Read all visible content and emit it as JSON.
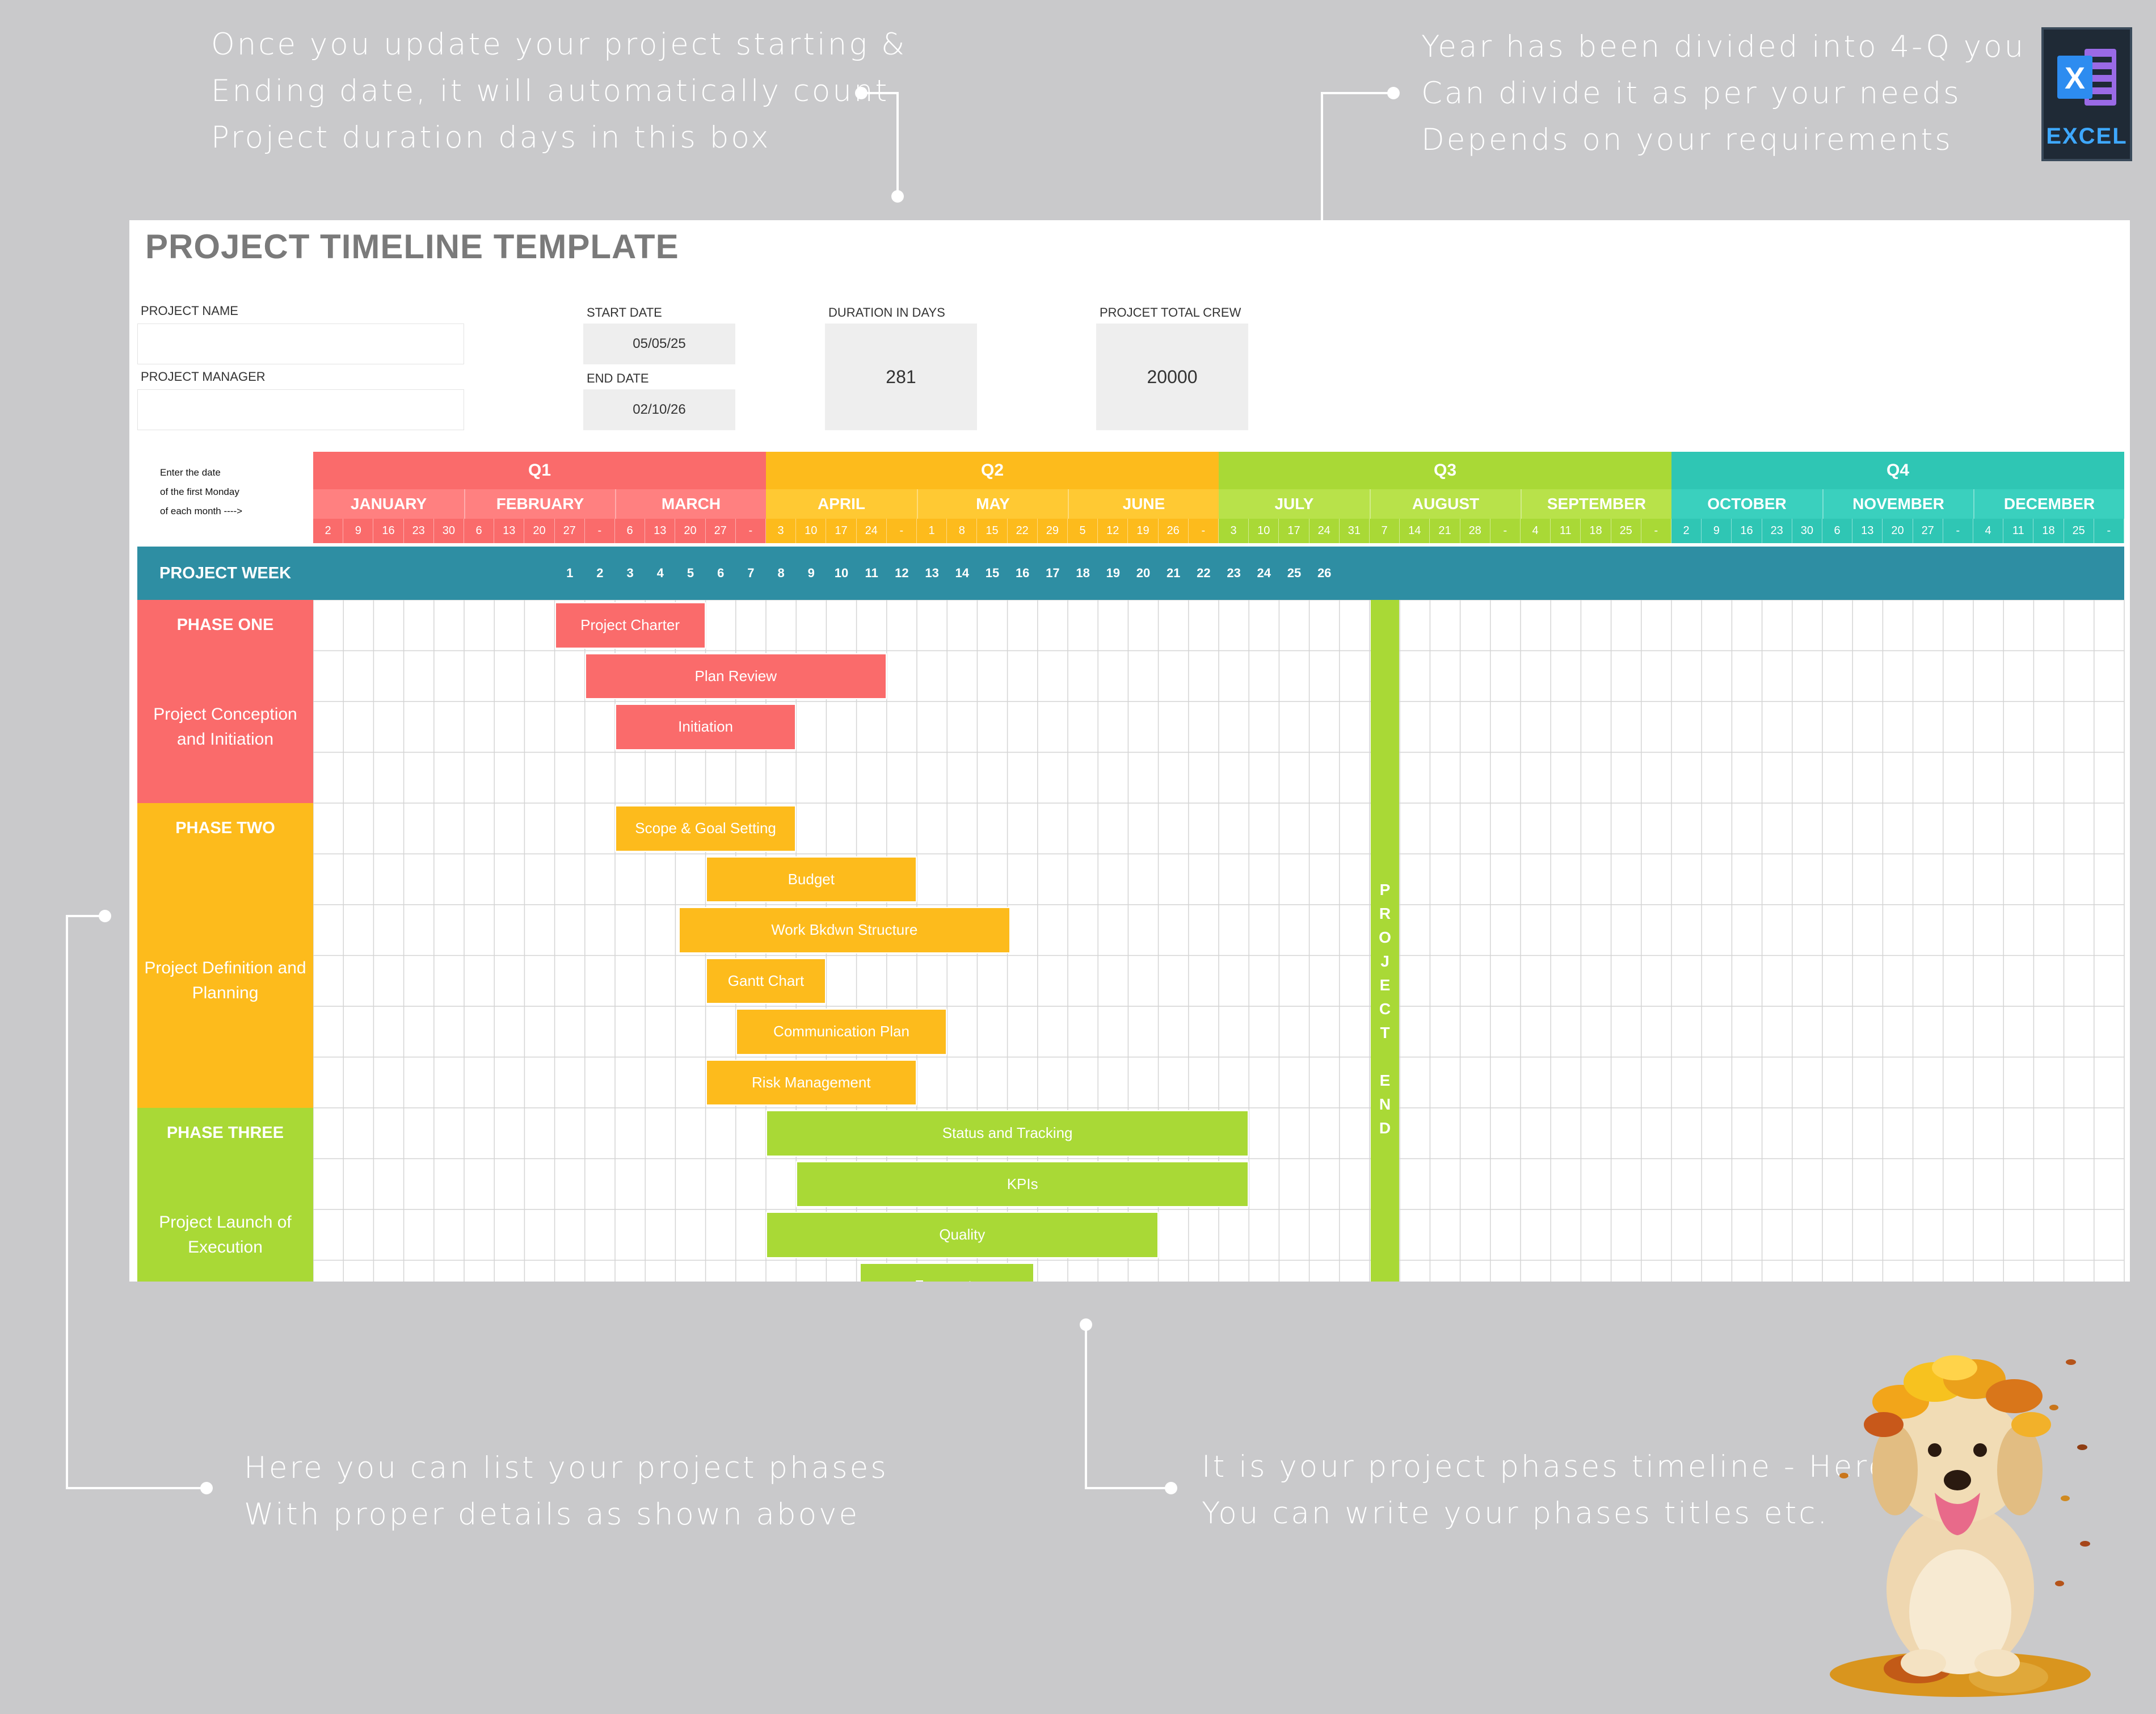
{
  "notes": {
    "top_left": [
      "Once you update your project starting &",
      "Ending date, it will automatically count",
      "Project duration days in this box"
    ],
    "top_right": [
      "Year has been divided into 4-Q you",
      "Can divide it as per your needs",
      "Depends on your requirements"
    ],
    "bottom_left": [
      "Here you can list your project phases",
      "With proper details as shown above"
    ],
    "bottom_right": [
      "It is your project phases timeline - Here",
      "You can write your phases titles etc."
    ]
  },
  "excel_logo": {
    "word": "EXCEL",
    "letter": "X",
    "icon": "excel-icon"
  },
  "template": {
    "title": "PROJECT TIMELINE TEMPLATE",
    "project_name_label": "PROJECT NAME",
    "project_name_value": "",
    "project_manager_label": "PROJECT MANAGER",
    "project_manager_value": "",
    "start_date_label": "START DATE",
    "start_date": "05/05/25",
    "end_date_label": "END DATE",
    "end_date": "02/10/26",
    "duration_label": "DURATION IN DAYS",
    "duration": "281",
    "crew_label": "PROJCET TOTAL CREW",
    "crew": "20000"
  },
  "timeline": {
    "instruction": [
      "Enter the date",
      "of the first Monday",
      "of each month ---->"
    ],
    "week_label": "PROJECT WEEK",
    "quarters": [
      {
        "name": "Q1",
        "color": "#fa6b6b",
        "light": "#ff8080",
        "months": [
          {
            "name": "JANUARY",
            "days": [
              "2",
              "9",
              "16",
              "23",
              "30"
            ]
          },
          {
            "name": "FEBRUARY",
            "days": [
              "6",
              "13",
              "20",
              "27",
              "-"
            ]
          },
          {
            "name": "MARCH",
            "days": [
              "6",
              "13",
              "20",
              "27",
              "-"
            ]
          }
        ]
      },
      {
        "name": "Q2",
        "color": "#fdbb1c",
        "light": "#ffc933",
        "months": [
          {
            "name": "APRIL",
            "days": [
              "3",
              "10",
              "17",
              "24",
              "-"
            ]
          },
          {
            "name": "MAY",
            "days": [
              "1",
              "8",
              "15",
              "22",
              "29"
            ]
          },
          {
            "name": "JUNE",
            "days": [
              "5",
              "12",
              "19",
              "26",
              "-"
            ]
          }
        ]
      },
      {
        "name": "Q3",
        "color": "#a9d936",
        "light": "#b8e24a",
        "months": [
          {
            "name": "JULY",
            "days": [
              "3",
              "10",
              "17",
              "24",
              "31"
            ]
          },
          {
            "name": "AUGUST",
            "days": [
              "7",
              "14",
              "21",
              "28",
              "-"
            ]
          },
          {
            "name": "SEPTEMBER",
            "days": [
              "4",
              "11",
              "18",
              "25",
              "-"
            ]
          }
        ]
      },
      {
        "name": "Q4",
        "color": "#2fc6b4",
        "light": "#3ad0be",
        "months": [
          {
            "name": "OCTOBER",
            "days": [
              "2",
              "9",
              "16",
              "23",
              "30"
            ]
          },
          {
            "name": "NOVEMBER",
            "days": [
              "6",
              "13",
              "20",
              "27",
              "-"
            ]
          },
          {
            "name": "DECEMBER",
            "days": [
              "4",
              "11",
              "18",
              "25",
              "-"
            ]
          }
        ]
      }
    ],
    "weeks_start_col": 8,
    "weeks": [
      "1",
      "2",
      "3",
      "4",
      "5",
      "6",
      "7",
      "8",
      "9",
      "10",
      "11",
      "12",
      "13",
      "14",
      "15",
      "16",
      "17",
      "18",
      "19",
      "20",
      "21",
      "22",
      "23",
      "24",
      "25",
      "26"
    ],
    "phases": [
      {
        "title": "PHASE ONE",
        "desc": "Project Conception and Initiation",
        "color": "#fa6b6b",
        "rows": 4
      },
      {
        "title": "PHASE TWO",
        "desc": "Project Definition and Planning",
        "color": "#fdbb1c",
        "rows": 6
      },
      {
        "title": "PHASE THREE",
        "desc": "Project Launch of Execution",
        "color": "#a9d936",
        "rows": 4
      }
    ],
    "tasks": [
      {
        "name": "Project Charter",
        "row": 0,
        "start": 8.0,
        "span": 5.0,
        "color": "#fa6b6b"
      },
      {
        "name": "Plan Review",
        "row": 1,
        "start": 9.0,
        "span": 10.0,
        "color": "#fa6b6b"
      },
      {
        "name": "Initiation",
        "row": 2,
        "start": 10.0,
        "span": 6.0,
        "color": "#fa6b6b"
      },
      {
        "name": "Scope & Goal Setting",
        "row": 4,
        "start": 10.0,
        "span": 6.0,
        "color": "#fdbb1c"
      },
      {
        "name": "Budget",
        "row": 5,
        "start": 13.0,
        "span": 7.0,
        "color": "#fdbb1c"
      },
      {
        "name": "Work Bkdwn Structure",
        "row": 6,
        "start": 12.1,
        "span": 11.0,
        "color": "#fdbb1c"
      },
      {
        "name": "Gantt Chart",
        "row": 7,
        "start": 13.0,
        "span": 4.0,
        "color": "#fdbb1c"
      },
      {
        "name": "Communication Plan",
        "row": 8,
        "start": 14.0,
        "span": 7.0,
        "color": "#fdbb1c"
      },
      {
        "name": "Risk Management",
        "row": 9,
        "start": 13.0,
        "span": 7.0,
        "color": "#fdbb1c"
      },
      {
        "name": "Status  and  Tracking",
        "row": 10,
        "start": 15.0,
        "span": 16.0,
        "color": "#a9d936"
      },
      {
        "name": "KPIs",
        "row": 11,
        "start": 16.0,
        "span": 15.0,
        "color": "#a9d936"
      },
      {
        "name": "Quality",
        "row": 12,
        "start": 15.0,
        "span": 13.0,
        "color": "#a9d936"
      },
      {
        "name": "Forecasts",
        "row": 13,
        "start": 18.1,
        "span": 5.8,
        "color": "#a9d936"
      }
    ],
    "project_end": {
      "col": 35.0,
      "letters": [
        "P",
        "R",
        "O",
        "J",
        "E",
        "C",
        "T",
        "",
        "E",
        "N",
        "D"
      ],
      "color": "#a9d936"
    },
    "colors": {
      "week_bar": "#2e8ea3",
      "grid": "#d4d4d4"
    }
  }
}
